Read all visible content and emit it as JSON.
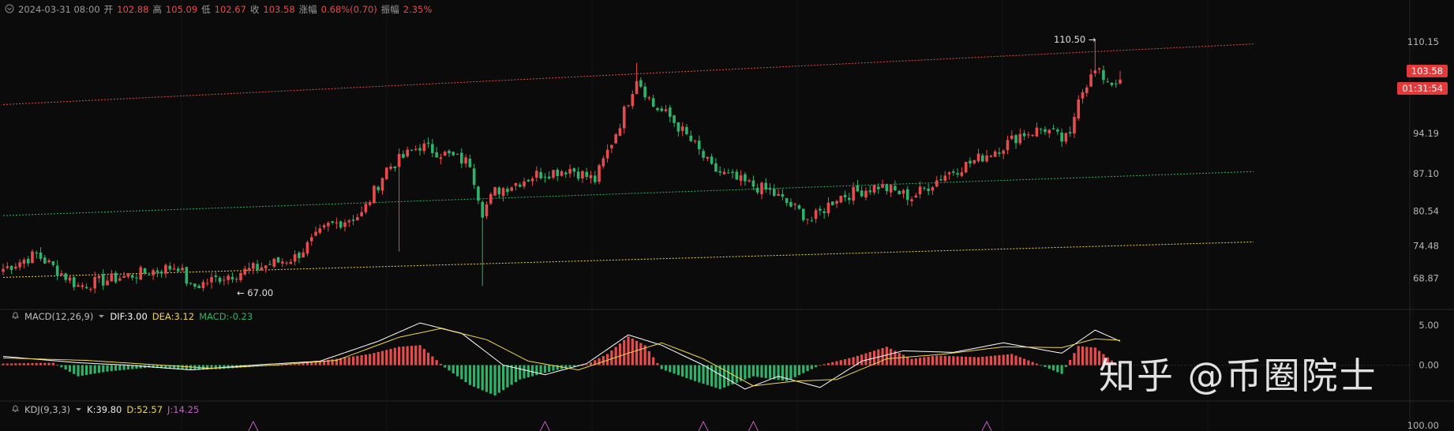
{
  "header": {
    "datetime": "2024-03-31 08:00",
    "open_label": "开",
    "open": "102.88",
    "high_label": "高",
    "high": "105.09",
    "low_label": "低",
    "low": "102.67",
    "close_label": "收",
    "close": "103.58",
    "change_label": "涨幅",
    "change": "0.68%(0.70)",
    "amplitude_label": "振幅",
    "amplitude": "2.35%"
  },
  "price_tags": {
    "last_price": "103.58",
    "countdown": "01:31:54"
  },
  "annotations": {
    "high": "110.50 →",
    "low": "← 67.00"
  },
  "macd_header": {
    "name": "MACD(12,26,9)",
    "dif": "DIF:3.00",
    "dea": "DEA:3.12",
    "macd": "MACD:-0.23"
  },
  "kdj_header": {
    "name": "KDJ(9,3,3)",
    "k": "K:39.80",
    "d": "D:52.57",
    "j": "J:14.25"
  },
  "watermark": "知乎 @币圈院士",
  "colors": {
    "up": "#e74c4c",
    "down": "#2fb36b",
    "background": "#0b0b0b",
    "dif": "#ffffff",
    "dea": "#f0d64a",
    "j": "#c35ec3"
  },
  "chart_data": [
    {
      "type": "candlestick",
      "title": "",
      "y_ticks": [
        "110.15",
        "94.19",
        "87.10",
        "80.54",
        "74.48",
        "68.87"
      ],
      "ylim": [
        64.5,
        115
      ],
      "close_path": [
        [
          0,
          70.5
        ],
        [
          8,
          73
        ],
        [
          18,
          67.5
        ],
        [
          28,
          69
        ],
        [
          35,
          70
        ],
        [
          42,
          71
        ],
        [
          45,
          67.2
        ],
        [
          52,
          69
        ],
        [
          60,
          70.5
        ],
        [
          70,
          72.5
        ],
        [
          78,
          78
        ],
        [
          86,
          80
        ],
        [
          92,
          88
        ],
        [
          100,
          92
        ],
        [
          108,
          90
        ],
        [
          112,
          89
        ],
        [
          115,
          80.5
        ],
        [
          118,
          84
        ],
        [
          128,
          87
        ],
        [
          136,
          88
        ],
        [
          142,
          86
        ],
        [
          148,
          96
        ],
        [
          152,
          104
        ],
        [
          156,
          99
        ],
        [
          160,
          97
        ],
        [
          166,
          92
        ],
        [
          170,
          88
        ],
        [
          176,
          86
        ],
        [
          184,
          84
        ],
        [
          190,
          81
        ],
        [
          194,
          79
        ],
        [
          200,
          83
        ],
        [
          210,
          85
        ],
        [
          218,
          83
        ],
        [
          226,
          87
        ],
        [
          232,
          89
        ],
        [
          240,
          92
        ],
        [
          244,
          94
        ],
        [
          250,
          95
        ],
        [
          254,
          93
        ],
        [
          256,
          93.5
        ],
        [
          258,
          101
        ],
        [
          262,
          105
        ],
        [
          266,
          103
        ],
        [
          268,
          104
        ]
      ],
      "spikes": [
        {
          "i": 50,
          "low": 67.0
        },
        {
          "i": 95,
          "low": 73.5
        },
        {
          "i": 115,
          "low": 67.5
        },
        {
          "i": 152,
          "high": 106.5
        },
        {
          "i": 262,
          "high": 110.5
        }
      ],
      "channel_lines": [
        {
          "color": "#e74c4c",
          "from": [
            0,
            99.2
          ],
          "to": [
            300,
            109.8
          ]
        },
        {
          "color": "#2fb36b",
          "from": [
            0,
            79.8
          ],
          "to": [
            300,
            87.5
          ]
        },
        {
          "color": "#f0d64a",
          "from": [
            0,
            69.0
          ],
          "to": [
            300,
            75.2
          ]
        }
      ]
    },
    {
      "type": "macd",
      "y_ticks": [
        "5.00",
        "0.00"
      ],
      "ylim": [
        -4.5,
        6
      ],
      "histogram_path": [
        [
          0,
          0.2
        ],
        [
          12,
          0.3
        ],
        [
          18,
          -1.4
        ],
        [
          25,
          -0.8
        ],
        [
          35,
          -0.3
        ],
        [
          45,
          -0.6
        ],
        [
          52,
          -0.5
        ],
        [
          60,
          -0.2
        ],
        [
          70,
          0.1
        ],
        [
          80,
          0.8
        ],
        [
          88,
          1.4
        ],
        [
          95,
          2.3
        ],
        [
          100,
          2.5
        ],
        [
          106,
          -0.3
        ],
        [
          112,
          -2.5
        ],
        [
          118,
          -3.8
        ],
        [
          124,
          -1.8
        ],
        [
          132,
          -0.7
        ],
        [
          140,
          0.1
        ],
        [
          145,
          1.4
        ],
        [
          150,
          3.6
        ],
        [
          154,
          2.5
        ],
        [
          158,
          -0.5
        ],
        [
          166,
          -2.0
        ],
        [
          172,
          -3.0
        ],
        [
          180,
          -1.4
        ],
        [
          188,
          -2.0
        ],
        [
          196,
          0.0
        ],
        [
          204,
          1.0
        ],
        [
          212,
          2.3
        ],
        [
          218,
          0.8
        ],
        [
          224,
          1.2
        ],
        [
          234,
          1.0
        ],
        [
          242,
          1.4
        ],
        [
          248,
          0.2
        ],
        [
          254,
          -1.1
        ],
        [
          258,
          2.4
        ],
        [
          262,
          2.2
        ],
        [
          268,
          -0.23
        ]
      ],
      "dif_path": [
        [
          0,
          1.1
        ],
        [
          18,
          0.3
        ],
        [
          30,
          0.0
        ],
        [
          45,
          -0.6
        ],
        [
          60,
          0.0
        ],
        [
          76,
          0.5
        ],
        [
          90,
          3.0
        ],
        [
          100,
          5.3
        ],
        [
          110,
          4.0
        ],
        [
          120,
          0.0
        ],
        [
          130,
          -1.2
        ],
        [
          140,
          0.2
        ],
        [
          150,
          3.8
        ],
        [
          158,
          2.5
        ],
        [
          168,
          0.0
        ],
        [
          178,
          -3.0
        ],
        [
          186,
          -1.4
        ],
        [
          196,
          -2.8
        ],
        [
          206,
          0.5
        ],
        [
          216,
          1.8
        ],
        [
          228,
          1.6
        ],
        [
          240,
          2.8
        ],
        [
          254,
          1.5
        ],
        [
          262,
          4.4
        ],
        [
          268,
          3.0
        ]
      ],
      "dea_path": [
        [
          0,
          0.9
        ],
        [
          20,
          0.6
        ],
        [
          35,
          0.1
        ],
        [
          50,
          -0.4
        ],
        [
          65,
          0.0
        ],
        [
          80,
          0.6
        ],
        [
          95,
          3.5
        ],
        [
          105,
          4.6
        ],
        [
          116,
          3.2
        ],
        [
          126,
          0.5
        ],
        [
          138,
          -0.6
        ],
        [
          150,
          1.5
        ],
        [
          158,
          2.8
        ],
        [
          168,
          0.8
        ],
        [
          180,
          -2.6
        ],
        [
          190,
          -2.0
        ],
        [
          200,
          -1.8
        ],
        [
          212,
          0.8
        ],
        [
          226,
          1.4
        ],
        [
          240,
          2.3
        ],
        [
          254,
          2.2
        ],
        [
          262,
          3.3
        ],
        [
          268,
          3.12
        ]
      ]
    },
    {
      "type": "kdj",
      "y_ticks": [
        "100.00"
      ],
      "j_spikes": [
        60,
        130,
        168,
        180,
        236
      ]
    }
  ]
}
